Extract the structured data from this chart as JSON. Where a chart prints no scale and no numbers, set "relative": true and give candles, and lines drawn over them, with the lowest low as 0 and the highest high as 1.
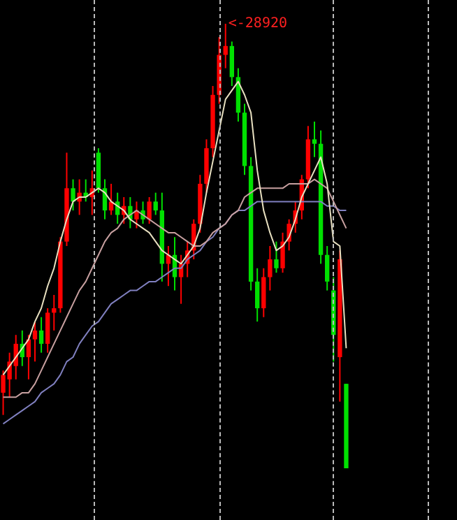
{
  "chart_data": {
    "type": "candlestick",
    "relative": true,
    "marker": "none",
    "legend": false,
    "categories": [
      null,
      null,
      null,
      null,
      null,
      null,
      null,
      null,
      null,
      null,
      null,
      null,
      null,
      null,
      null,
      null,
      null,
      null,
      null,
      null,
      null,
      null,
      null,
      null,
      null,
      null,
      null,
      null,
      null,
      null,
      null,
      null,
      null,
      null,
      null,
      null,
      null,
      null,
      null,
      null,
      null,
      null,
      null,
      null,
      null,
      null,
      null,
      null,
      null,
      null,
      null,
      null,
      null,
      null,
      null
    ],
    "annotations": [
      "<-28920"
    ],
    "ohlc": [
      [
        0.17,
        0.22,
        0.12,
        0.21
      ],
      [
        0.2,
        0.26,
        0.16,
        0.24
      ],
      [
        0.23,
        0.3,
        0.2,
        0.28
      ],
      [
        0.28,
        0.31,
        0.23,
        0.25
      ],
      [
        0.25,
        0.3,
        0.2,
        0.29
      ],
      [
        0.29,
        0.33,
        0.24,
        0.31
      ],
      [
        0.31,
        0.34,
        0.26,
        0.28
      ],
      [
        0.28,
        0.36,
        0.26,
        0.35
      ],
      [
        0.35,
        0.39,
        0.31,
        0.36
      ],
      [
        0.36,
        0.52,
        0.35,
        0.51
      ],
      [
        0.51,
        0.71,
        0.5,
        0.63
      ],
      [
        0.63,
        0.65,
        0.58,
        0.6
      ],
      [
        0.6,
        0.65,
        0.57,
        0.62
      ],
      [
        0.62,
        0.65,
        0.6,
        0.61
      ],
      [
        0.61,
        0.67,
        0.57,
        0.63
      ],
      [
        0.71,
        0.72,
        0.62,
        0.63
      ],
      [
        0.63,
        0.65,
        0.56,
        0.58
      ],
      [
        0.58,
        0.64,
        0.57,
        0.6
      ],
      [
        0.6,
        0.62,
        0.55,
        0.57
      ],
      [
        0.57,
        0.61,
        0.55,
        0.59
      ],
      [
        0.59,
        0.61,
        0.54,
        0.56
      ],
      [
        0.56,
        0.6,
        0.54,
        0.58
      ],
      [
        0.58,
        0.6,
        0.55,
        0.56
      ],
      [
        0.56,
        0.61,
        0.55,
        0.6
      ],
      [
        0.6,
        0.62,
        0.57,
        0.58
      ],
      [
        0.58,
        0.62,
        0.42,
        0.46
      ],
      [
        0.46,
        0.5,
        0.41,
        0.48
      ],
      [
        0.48,
        0.52,
        0.4,
        0.43
      ],
      [
        0.43,
        0.48,
        0.37,
        0.46
      ],
      [
        0.46,
        0.51,
        0.43,
        0.49
      ],
      [
        0.49,
        0.56,
        0.47,
        0.55
      ],
      [
        0.55,
        0.66,
        0.53,
        0.64
      ],
      [
        0.64,
        0.74,
        0.62,
        0.72
      ],
      [
        0.72,
        0.86,
        0.7,
        0.84
      ],
      [
        0.84,
        0.97,
        0.82,
        0.93
      ],
      [
        0.93,
        1.0,
        0.9,
        0.95
      ],
      [
        0.95,
        0.96,
        0.86,
        0.88
      ],
      [
        0.88,
        0.9,
        0.78,
        0.8
      ],
      [
        0.8,
        0.82,
        0.66,
        0.68
      ],
      [
        0.68,
        0.7,
        0.4,
        0.42
      ],
      [
        0.42,
        0.45,
        0.33,
        0.36
      ],
      [
        0.36,
        0.45,
        0.34,
        0.43
      ],
      [
        0.43,
        0.5,
        0.4,
        0.47
      ],
      [
        0.47,
        0.51,
        0.44,
        0.45
      ],
      [
        0.45,
        0.53,
        0.44,
        0.51
      ],
      [
        0.51,
        0.56,
        0.49,
        0.55
      ],
      [
        0.55,
        0.6,
        0.53,
        0.58
      ],
      [
        0.58,
        0.66,
        0.56,
        0.65
      ],
      [
        0.65,
        0.77,
        0.63,
        0.74
      ],
      [
        0.74,
        0.78,
        0.7,
        0.73
      ],
      [
        0.73,
        0.76,
        0.46,
        0.48
      ],
      [
        0.48,
        0.5,
        0.4,
        0.42
      ],
      [
        0.4,
        0.43,
        0.24,
        0.3
      ],
      [
        0.25,
        0.49,
        0.15,
        0.47
      ],
      [
        0.19,
        0.19,
        0.0,
        0.0
      ]
    ],
    "colors": [
      "#ff0000",
      "#ff0000",
      "#ff0000",
      "#00e000",
      "#ff0000",
      "#ff0000",
      "#00e000",
      "#ff0000",
      "#ff0000",
      "#ff0000",
      "#ff0000",
      "#00e000",
      "#ff0000",
      "#00e000",
      "#ff0000",
      "#00e000",
      "#00e000",
      "#ff0000",
      "#00e000",
      "#ff0000",
      "#00e000",
      "#ff0000",
      "#00e000",
      "#ff0000",
      "#00e000",
      "#00e000",
      "#ff0000",
      "#00e000",
      "#ff0000",
      "#ff0000",
      "#ff0000",
      "#ff0000",
      "#ff0000",
      "#ff0000",
      "#ff0000",
      "#ff0000",
      "#00e000",
      "#00e000",
      "#00e000",
      "#00e000",
      "#00e000",
      "#ff0000",
      "#ff0000",
      "#00e000",
      "#ff0000",
      "#ff0000",
      "#ff0000",
      "#ff0000",
      "#ff0000",
      "#00e000",
      "#00e000",
      "#00e000",
      "#00e000",
      "#ff0000",
      "#00e000"
    ],
    "series": [
      {
        "type": "line",
        "color": "#e8e0c0",
        "values": [
          0.21,
          0.23,
          0.25,
          0.27,
          0.29,
          0.33,
          0.36,
          0.41,
          0.45,
          0.51,
          0.56,
          0.6,
          0.61,
          0.61,
          0.62,
          0.63,
          0.62,
          0.6,
          0.59,
          0.58,
          0.56,
          0.55,
          0.54,
          0.53,
          0.51,
          0.49,
          0.48,
          0.47,
          0.46,
          0.48,
          0.5,
          0.54,
          0.62,
          0.69,
          0.76,
          0.83,
          0.85,
          0.87,
          0.84,
          0.8,
          0.67,
          0.58,
          0.53,
          0.49,
          0.5,
          0.52,
          0.56,
          0.61,
          0.64,
          0.67,
          0.7,
          0.64,
          0.51,
          0.5,
          0.27
        ]
      },
      {
        "type": "line",
        "color": "#c8a0a0",
        "values": [
          0.16,
          0.16,
          0.16,
          0.17,
          0.17,
          0.19,
          0.22,
          0.25,
          0.28,
          0.31,
          0.34,
          0.37,
          0.4,
          0.42,
          0.45,
          0.48,
          0.51,
          0.53,
          0.54,
          0.56,
          0.57,
          0.58,
          0.57,
          0.56,
          0.55,
          0.54,
          0.53,
          0.53,
          0.52,
          0.51,
          0.5,
          0.5,
          0.51,
          0.53,
          0.54,
          0.55,
          0.57,
          0.58,
          0.61,
          0.62,
          0.63,
          0.63,
          0.63,
          0.63,
          0.63,
          0.64,
          0.64,
          0.64,
          0.64,
          0.65,
          0.64,
          0.63,
          0.6,
          0.57,
          0.54
        ]
      },
      {
        "type": "line",
        "color": "#8080c0",
        "values": [
          0.1,
          0.11,
          0.12,
          0.13,
          0.14,
          0.15,
          0.17,
          0.18,
          0.19,
          0.21,
          0.24,
          0.25,
          0.28,
          0.3,
          0.32,
          0.33,
          0.35,
          0.37,
          0.38,
          0.39,
          0.4,
          0.4,
          0.41,
          0.42,
          0.42,
          0.43,
          0.44,
          0.45,
          0.45,
          0.47,
          0.48,
          0.49,
          0.51,
          0.52,
          0.54,
          0.55,
          0.57,
          0.58,
          0.58,
          0.59,
          0.6,
          0.6,
          0.6,
          0.6,
          0.6,
          0.6,
          0.6,
          0.6,
          0.6,
          0.6,
          0.6,
          0.59,
          0.59,
          0.58,
          0.58
        ]
      }
    ]
  }
}
